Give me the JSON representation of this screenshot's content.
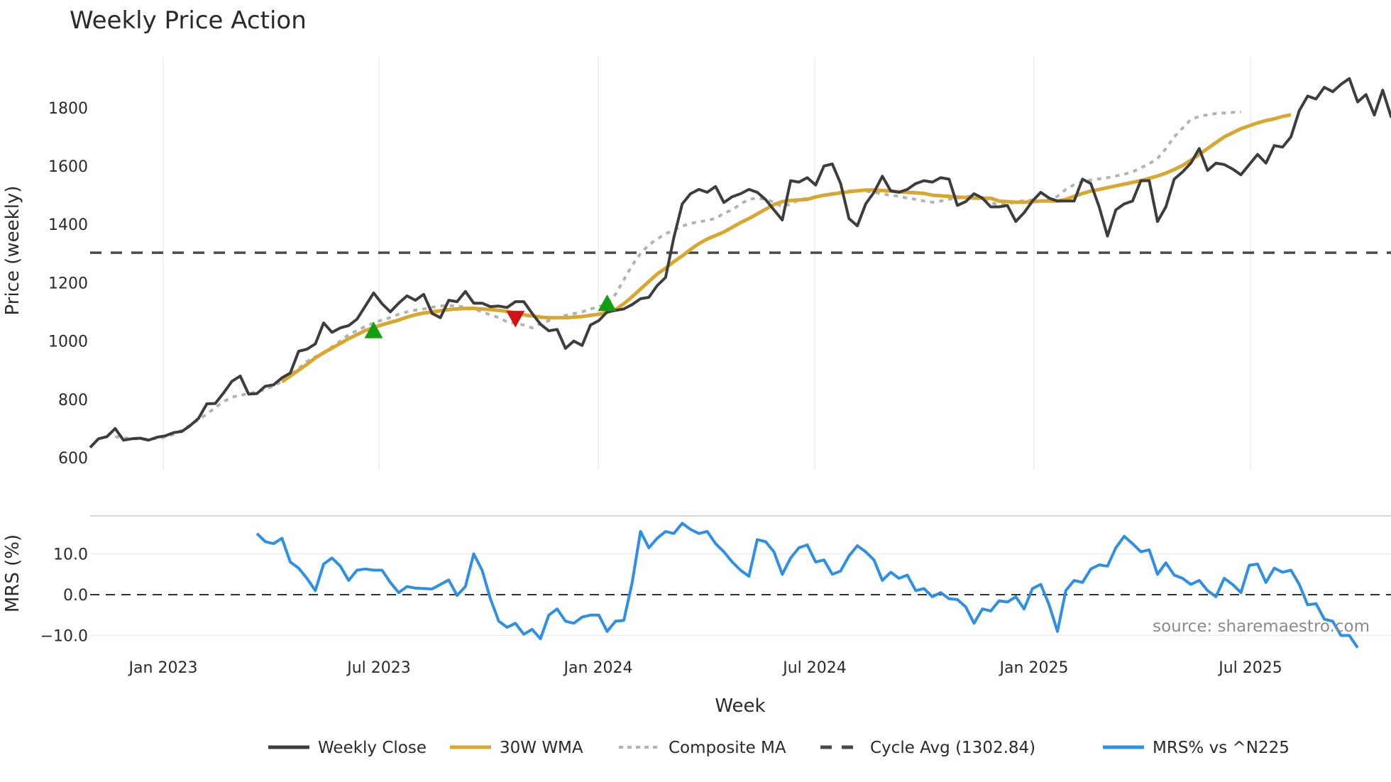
{
  "title": "Weekly Price Action",
  "source_note": "source: sharemaestro.com",
  "colors": {
    "weekly_close": "#3d3d3d",
    "wma30": "#d9a62e",
    "composite_ma": "#b3b3b3",
    "cycle_avg": "#4a4a4a",
    "mrs": "#2e8fe6",
    "buy_marker": "#12a012",
    "sell_marker": "#d01414",
    "grid": "#e8edf2"
  },
  "legend": [
    {
      "key": "weekly_close",
      "label": "Weekly Close",
      "style": "solid"
    },
    {
      "key": "wma30",
      "label": "30W WMA",
      "style": "solid"
    },
    {
      "key": "composite_ma",
      "label": "Composite MA",
      "style": "dotted"
    },
    {
      "key": "cycle_avg",
      "label": "Cycle Avg (1302.84)",
      "style": "dashed"
    },
    {
      "key": "mrs",
      "label": "MRS% vs ^N225",
      "style": "solid"
    }
  ],
  "chart_data": [
    {
      "type": "line",
      "title": "Weekly Price Action",
      "xlabel": "Week",
      "ylabel": "Price (weekly)",
      "ylim": [
        600,
        1950
      ],
      "yticks": [
        600,
        800,
        1000,
        1200,
        1400,
        1600,
        1800
      ],
      "xticks": [
        "Jan 2023",
        "Jul 2023",
        "Jan 2024",
        "Jul 2024",
        "Jan 2025",
        "Jul 2025"
      ],
      "grid": "vertical at x ticks",
      "legend_position": "bottom center",
      "reference_lines": [
        {
          "name": "Cycle Avg",
          "value": 1302.84,
          "style": "dashed"
        }
      ],
      "x_start_week_offset": 0,
      "series": [
        {
          "name": "Weekly Close",
          "start_week": 0,
          "values": [
            635,
            665,
            672,
            700,
            660,
            665,
            667,
            660,
            670,
            675,
            686,
            690,
            710,
            735,
            785,
            786,
            822,
            862,
            880,
            818,
            820,
            845,
            850,
            874,
            890,
            965,
            972,
            990,
            1062,
            1030,
            1045,
            1053,
            1075,
            1120,
            1165,
            1128,
            1100,
            1130,
            1155,
            1140,
            1160,
            1095,
            1080,
            1140,
            1135,
            1170,
            1130,
            1130,
            1118,
            1120,
            1115,
            1135,
            1135,
            1095,
            1058,
            1035,
            1040,
            975,
            1000,
            985,
            1055,
            1070,
            1100,
            1105,
            1110,
            1125,
            1145,
            1150,
            1190,
            1218,
            1355,
            1470,
            1505,
            1520,
            1510,
            1530,
            1475,
            1495,
            1505,
            1520,
            1510,
            1485,
            1450,
            1415,
            1550,
            1545,
            1560,
            1535,
            1600,
            1607,
            1540,
            1420,
            1395,
            1470,
            1510,
            1565,
            1515,
            1510,
            1520,
            1540,
            1550,
            1545,
            1560,
            1555,
            1465,
            1478,
            1505,
            1490,
            1460,
            1460,
            1465,
            1410,
            1440,
            1480,
            1510,
            1490,
            1480,
            1480,
            1480,
            1555,
            1540,
            1460,
            1360,
            1450,
            1470,
            1480,
            1550,
            1550,
            1410,
            1460,
            1555,
            1580,
            1610,
            1660,
            1585,
            1610,
            1605,
            1590,
            1570,
            1605,
            1640,
            1610,
            1670,
            1665,
            1700,
            1790,
            1840,
            1830,
            1870,
            1855,
            1880,
            1900,
            1820,
            1845,
            1775,
            1860,
            1770,
            1835,
            1800
          ]
        },
        {
          "name": "30W WMA",
          "start_week": 23,
          "values": [
            860,
            880,
            900,
            920,
            942,
            960,
            976,
            992,
            1008,
            1022,
            1036,
            1046,
            1056,
            1064,
            1072,
            1082,
            1090,
            1096,
            1100,
            1104,
            1108,
            1110,
            1112,
            1112,
            1110,
            1108,
            1105,
            1102,
            1096,
            1090,
            1086,
            1082,
            1080,
            1080,
            1080,
            1082,
            1084,
            1088,
            1092,
            1098,
            1108,
            1128,
            1152,
            1178,
            1204,
            1230,
            1250,
            1272,
            1292,
            1314,
            1334,
            1350,
            1362,
            1374,
            1390,
            1406,
            1420,
            1436,
            1452,
            1468,
            1478,
            1482,
            1484,
            1486,
            1494,
            1500,
            1504,
            1508,
            1512,
            1515,
            1518,
            1518,
            1516,
            1514,
            1512,
            1510,
            1508,
            1506,
            1500,
            1498,
            1496,
            1494,
            1492,
            1490,
            1490,
            1490,
            1480,
            1478,
            1476,
            1476,
            1478,
            1480,
            1480,
            1480,
            1486,
            1496,
            1506,
            1514,
            1520,
            1526,
            1532,
            1538,
            1544,
            1550,
            1558,
            1566,
            1576,
            1588,
            1602,
            1620,
            1640,
            1660,
            1680,
            1700,
            1714,
            1728,
            1738,
            1748,
            1756,
            1762,
            1770,
            1776
          ]
        },
        {
          "name": "Composite MA",
          "start_week": 3,
          "values": [
            672,
            668,
            666,
            664,
            664,
            666,
            670,
            680,
            695,
            712,
            730,
            750,
            772,
            792,
            808,
            814,
            820,
            826,
            834,
            846,
            862,
            884,
            906,
            930,
            946,
            958,
            980,
            1000,
            1022,
            1036,
            1050,
            1062,
            1072,
            1080,
            1092,
            1100,
            1106,
            1110,
            1116,
            1120,
            1122,
            1120,
            1116,
            1110,
            1100,
            1090,
            1080,
            1066,
            1060,
            1055,
            1045,
            1060,
            1070,
            1080,
            1088,
            1094,
            1100,
            1110,
            1118,
            1128,
            1160,
            1210,
            1260,
            1300,
            1330,
            1350,
            1368,
            1380,
            1394,
            1404,
            1408,
            1414,
            1420,
            1438,
            1450,
            1470,
            1486,
            1490,
            1486,
            1476,
            1460,
            1470,
            1484,
            1490,
            1494,
            1500,
            1506,
            1510,
            1514,
            1516,
            1514,
            1510,
            1504,
            1500,
            1496,
            1490,
            1486,
            1480,
            1476,
            1480,
            1486,
            1490,
            1494,
            1500,
            1490,
            1474,
            1468,
            1470,
            1476,
            1482,
            1484,
            1480,
            1484,
            1496,
            1520,
            1536,
            1546,
            1552,
            1556,
            1560,
            1566,
            1572,
            1580,
            1594,
            1608,
            1626,
            1660,
            1700,
            1730,
            1760,
            1770,
            1776,
            1780,
            1782,
            1784,
            1786
          ]
        },
        {
          "name": "Cycle Avg (1302.84)",
          "constant": 1302.84
        }
      ],
      "markers": [
        {
          "type": "buy",
          "shape": "triangle-up",
          "week": 34,
          "value": 1035
        },
        {
          "type": "sell",
          "shape": "triangle-down",
          "week": 51,
          "value": 1078
        },
        {
          "type": "buy",
          "shape": "triangle-up",
          "week": 62,
          "value": 1128
        }
      ]
    },
    {
      "type": "line",
      "title": "",
      "xlabel": "Week",
      "ylabel": "MRS (%)",
      "ylim": [
        -14,
        19
      ],
      "yticks": [
        -10.0,
        0.0,
        10.0
      ],
      "reference_lines": [
        {
          "name": "zero",
          "value": 0.0,
          "style": "dashed"
        }
      ],
      "series": [
        {
          "name": "MRS% vs ^N225",
          "start_week": 20,
          "values": [
            15.0,
            13.0,
            12.5,
            13.8,
            8.0,
            6.5,
            4.0,
            1.0,
            7.5,
            9.0,
            7.0,
            3.5,
            6.0,
            6.3,
            6.0,
            6.0,
            3.0,
            0.5,
            2.0,
            1.6,
            1.5,
            1.4,
            2.5,
            3.6,
            -0.2,
            2.0,
            10.0,
            6.0,
            -1.0,
            -6.5,
            -8.0,
            -7.0,
            -9.7,
            -8.5,
            -10.8,
            -5.0,
            -3.5,
            -6.5,
            -7.0,
            -5.5,
            -5.0,
            -5.0,
            -9.0,
            -6.5,
            -6.3,
            3.0,
            15.5,
            11.5,
            13.8,
            15.5,
            15.0,
            17.5,
            16.0,
            15.0,
            15.5,
            12.5,
            10.5,
            8.0,
            6.0,
            4.5,
            13.5,
            13.0,
            10.5,
            5.0,
            9.0,
            11.5,
            12.2,
            8.0,
            8.5,
            5.0,
            5.8,
            9.5,
            12.0,
            10.5,
            8.5,
            3.5,
            5.5,
            4.0,
            4.8,
            1.0,
            1.5,
            -0.5,
            0.5,
            -1.0,
            -1.2,
            -3.0,
            -7.0,
            -3.5,
            -4.0,
            -1.5,
            -1.8,
            -0.5,
            -3.5,
            1.5,
            2.5,
            -2.5,
            -9.0,
            1.0,
            3.5,
            3.0,
            6.3,
            7.3,
            7.0,
            11.5,
            14.3,
            12.5,
            10.5,
            11.0,
            5.0,
            7.8,
            4.8,
            4.0,
            2.5,
            3.5,
            1.0,
            -0.5,
            4.0,
            2.5,
            0.5,
            7.2,
            7.5,
            3.0,
            6.5,
            5.5,
            6.0,
            2.5,
            -2.5,
            -2.2,
            -6.0,
            -6.5,
            -10.0,
            -10.0,
            -13.0
          ]
        }
      ]
    }
  ]
}
